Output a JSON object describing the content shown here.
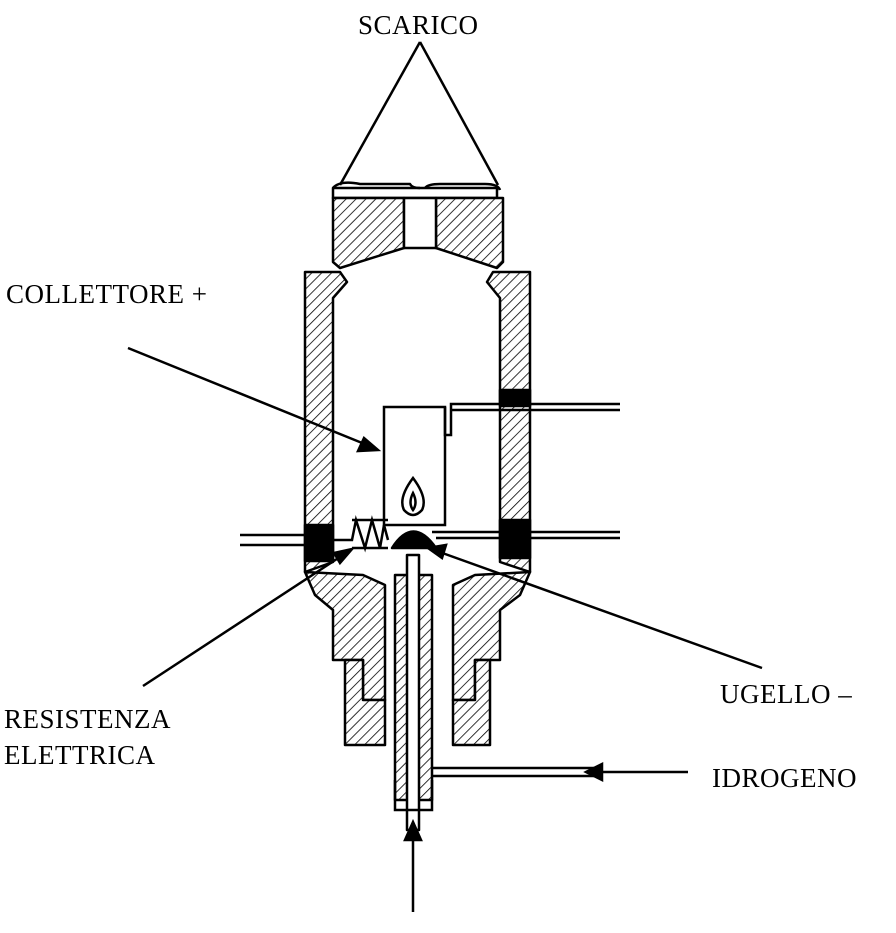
{
  "labels": {
    "scarico": "SCARICO",
    "collettore": "COLLETTORE +",
    "resistenza_line1": "RESISTENZA",
    "resistenza_line2": "ELETTRICA",
    "ugello": "UGELLO –",
    "idrogeno": "IDROGENO"
  },
  "colors": {
    "ink": "#000000",
    "paper": "#ffffff"
  }
}
